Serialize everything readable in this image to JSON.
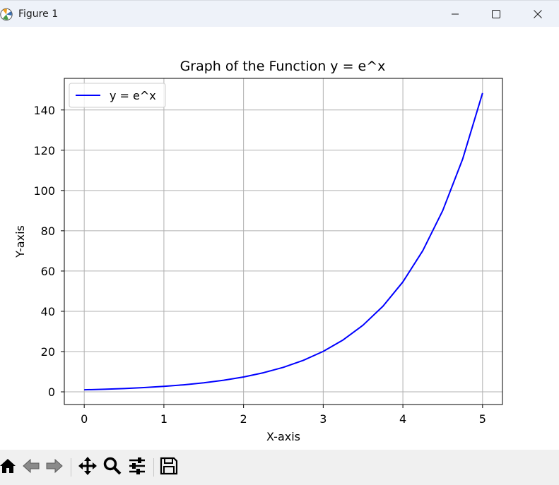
{
  "window": {
    "title": "Figure 1",
    "app_icon": "matplotlib-logo-icon",
    "controls": [
      "minimize-icon",
      "maximize-icon",
      "close-icon"
    ]
  },
  "chart_data": {
    "type": "line",
    "title": "Graph of the Function y = e^x",
    "xlabel": "X-axis",
    "ylabel": "Y-axis",
    "xlim": [
      -0.25,
      5.25
    ],
    "ylim": [
      -6.3,
      155.7
    ],
    "xticks": [
      0,
      1,
      2,
      3,
      4,
      5
    ],
    "yticks": [
      0,
      20,
      40,
      60,
      80,
      100,
      120,
      140
    ],
    "grid": true,
    "legend_position": "upper-left",
    "series": [
      {
        "name": "y = e^x",
        "color": "#0000ff",
        "x": [
          0,
          0.25,
          0.5,
          0.75,
          1,
          1.25,
          1.5,
          1.75,
          2,
          2.25,
          2.5,
          2.75,
          3,
          3.25,
          3.5,
          3.75,
          4,
          4.25,
          4.5,
          4.75,
          5
        ],
        "y": [
          1,
          1.28,
          1.65,
          2.12,
          2.72,
          3.49,
          4.48,
          5.75,
          7.39,
          9.49,
          12.18,
          15.64,
          20.09,
          25.79,
          33.12,
          42.52,
          54.6,
          70.11,
          90.02,
          115.58,
          148.41
        ]
      }
    ]
  },
  "toolbar": {
    "buttons": [
      "home-icon",
      "back-icon",
      "forward-icon",
      "pan-icon",
      "zoom-icon",
      "configure-subplots-icon",
      "save-icon"
    ]
  }
}
